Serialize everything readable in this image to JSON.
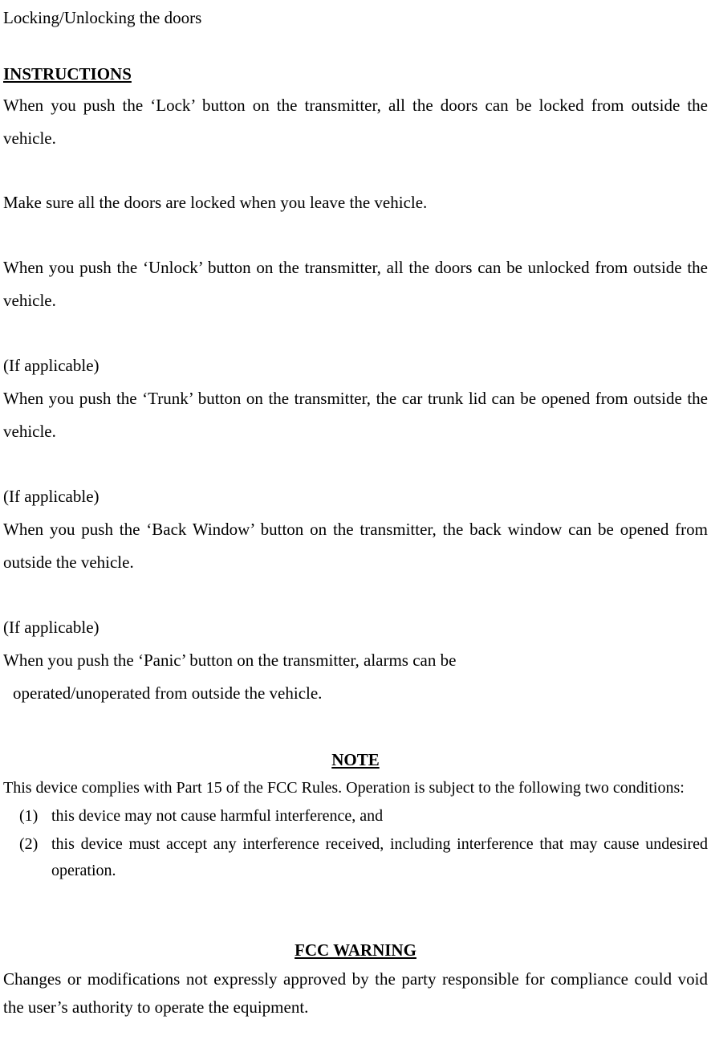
{
  "title": "Locking/Unlocking the doors",
  "instructions_heading": "INSTRUCTIONS",
  "para_lock": "When you push the ‘Lock’ button on the transmitter, all the doors can be locked from outside the vehicle.",
  "para_makesure": "Make sure all the doors are locked when you leave the vehicle.",
  "para_unlock": "When you push the ‘Unlock’ button on the transmitter, all the doors can be unlocked from outside the vehicle.",
  "if_applicable": "(If applicable)",
  "para_trunk": "When you push the ‘Trunk’ button on the transmitter, the car trunk lid can be opened from outside the vehicle.",
  "para_backwindow": "When you push the ‘Back Window’ button on the transmitter, the back window can be opened from outside the vehicle.",
  "para_panic_line1": "When you push the ‘Panic’ button on the transmitter, alarms can be",
  "para_panic_line2": "operated/unoperated from outside the vehicle.",
  "note_heading": "NOTE",
  "note_intro": "This device complies with Part 15 of the FCC Rules. Operation is subject to the following two conditions:",
  "note_items": [
    {
      "num": "(1)",
      "text": "this device may not cause harmful interference, and"
    },
    {
      "num": "(2)",
      "text": "this device must accept any interference received, including interference that may cause undesired operation."
    }
  ],
  "warning_heading": "FCC WARNING",
  "warning_para": "Changes or modifications not expressly approved by the party responsible for compliance could void the user’s authority to operate the equipment.",
  "colors": {
    "text": "#000000",
    "background": "#ffffff"
  },
  "typography": {
    "body_fontsize_pt": 16,
    "note_fontsize_pt": 15,
    "line_height": 1.95,
    "font_family": "Century Schoolbook / Times New Roman"
  }
}
